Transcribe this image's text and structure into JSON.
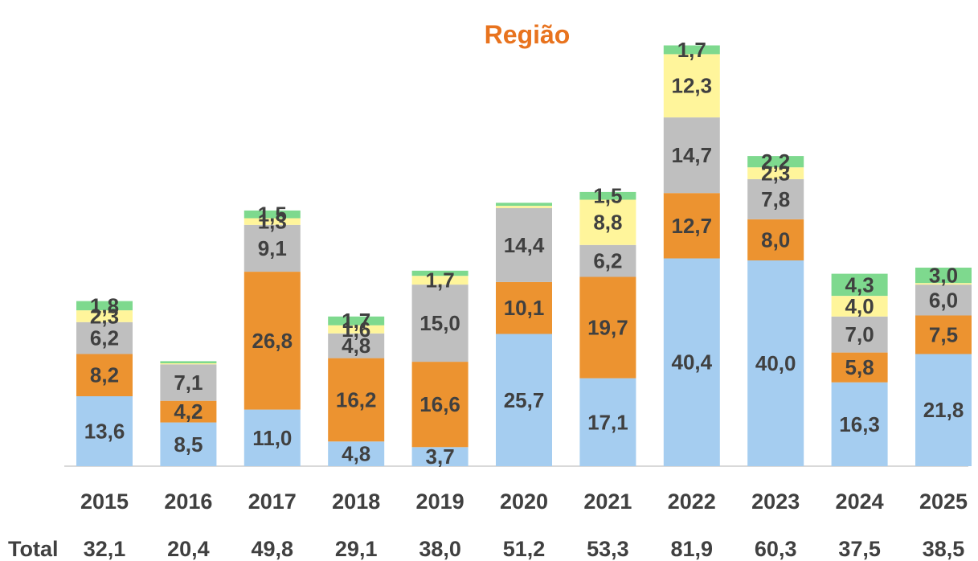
{
  "chart_data": {
    "type": "bar",
    "stacked": true,
    "title": "Região",
    "categories": [
      "2015",
      "2016",
      "2017",
      "2018",
      "2019",
      "2020",
      "2021",
      "2022",
      "2023",
      "2024",
      "2025"
    ],
    "series": [
      {
        "color": "#a5cdf0",
        "values": [
          13.6,
          8.5,
          11.0,
          4.8,
          3.7,
          25.7,
          17.1,
          40.4,
          40.0,
          16.3,
          21.8
        ],
        "labels": [
          "13,6",
          "8,5",
          "11,0",
          "4,8",
          "3,7",
          "25,7",
          "17,1",
          "40,4",
          "40,0",
          "16,3",
          "21,8"
        ]
      },
      {
        "color": "#ec9330",
        "values": [
          8.2,
          4.2,
          26.8,
          16.2,
          16.6,
          10.1,
          19.7,
          12.7,
          8.0,
          5.8,
          7.5
        ],
        "labels": [
          "8,2",
          "4,2",
          "26,8",
          "16,2",
          "16,6",
          "10,1",
          "19,7",
          "12,7",
          "8,0",
          "5,8",
          "7,5"
        ]
      },
      {
        "color": "#bfbfbf",
        "values": [
          6.2,
          7.1,
          9.1,
          4.8,
          15.0,
          14.4,
          6.2,
          14.7,
          7.8,
          7.0,
          6.0
        ],
        "labels": [
          "6,2",
          "7,1",
          "9,1",
          "4,8",
          "15,0",
          "14,4",
          "6,2",
          "14,7",
          "7,8",
          "7,0",
          "6,0"
        ]
      },
      {
        "color": "#fff59b",
        "values": [
          2.3,
          0.2,
          1.3,
          1.6,
          1.7,
          0.4,
          8.8,
          12.3,
          2.3,
          4.0,
          0.3
        ],
        "labels": [
          "2,3",
          "",
          "1,3",
          "1,6",
          "1,7",
          "",
          "8,8",
          "12,3",
          "2,3",
          "4,0",
          ""
        ]
      },
      {
        "color": "#7ed98e",
        "values": [
          1.8,
          0.4,
          1.5,
          1.7,
          1.0,
          0.6,
          1.5,
          1.7,
          2.2,
          4.3,
          3.0
        ],
        "labels": [
          "1,8",
          "",
          "1,5",
          "1,7",
          "",
          "",
          "1,5",
          "1,7",
          "2,2",
          "4,3",
          "3,0"
        ]
      }
    ],
    "totals_label": "Total",
    "totals": [
      "32,1",
      "20,4",
      "49,8",
      "29,1",
      "38,0",
      "51,2",
      "53,3",
      "81,9",
      "60,3",
      "37,5",
      "38,5"
    ],
    "ylim": [
      0,
      82
    ],
    "grid": false,
    "legend": "none"
  }
}
